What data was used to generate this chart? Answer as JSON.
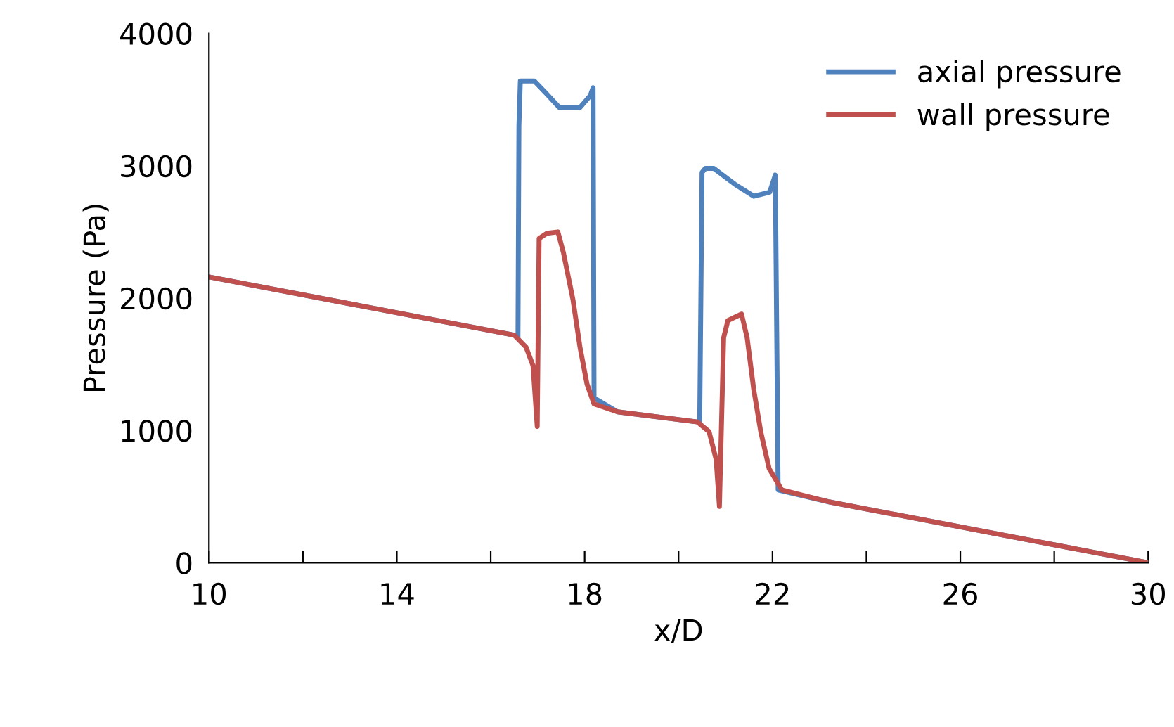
{
  "chart_data": {
    "type": "line",
    "xlabel": "x/D",
    "ylabel": "Pressure (Pa)",
    "xlim": [
      10,
      30
    ],
    "ylim": [
      0,
      4000
    ],
    "xticks": [
      10,
      {
        "value": 12,
        "label": null
      },
      14,
      {
        "value": 16,
        "label": null
      },
      18,
      {
        "value": 20,
        "label": null
      },
      22,
      {
        "value": 24,
        "label": null
      },
      26,
      {
        "value": 28,
        "label": null
      },
      30
    ],
    "yticks": [
      0,
      1000,
      2000,
      3000,
      4000
    ],
    "grid": false,
    "legend": "top right",
    "marker": "none",
    "line_style": "solid",
    "series": [
      {
        "name": "axial pressure",
        "color": "#4f81bd",
        "x": [
          10,
          16.5,
          16.58,
          16.6,
          16.63,
          16.93,
          17.2,
          17.46,
          17.9,
          18.12,
          18.18,
          18.2,
          18.7,
          20.4,
          20.45,
          20.5,
          20.57,
          20.75,
          21.2,
          21.6,
          21.94,
          22.06,
          22.12,
          23.2,
          30
        ],
        "values": [
          2160,
          1720,
          1700,
          3300,
          3640,
          3640,
          3540,
          3440,
          3440,
          3530,
          3590,
          1245,
          1140,
          1064,
          1060,
          2950,
          2980,
          2980,
          2860,
          2770,
          2800,
          2930,
          550,
          460,
          0
        ]
      },
      {
        "name": "wall pressure",
        "color": "#c0504d",
        "x": [
          10,
          16.5,
          16.75,
          16.9,
          16.99,
          17.03,
          17.2,
          17.43,
          17.55,
          17.75,
          17.9,
          18.05,
          18.2,
          18.7,
          20.4,
          20.65,
          20.8,
          20.87,
          20.96,
          21.05,
          21.34,
          21.46,
          21.6,
          21.75,
          21.93,
          22.2,
          23.2,
          30
        ],
        "values": [
          2160,
          1720,
          1630,
          1490,
          1030,
          2450,
          2490,
          2500,
          2340,
          1990,
          1630,
          1350,
          1200,
          1140,
          1064,
          990,
          780,
          425,
          1700,
          1830,
          1880,
          1700,
          1310,
          990,
          710,
          550,
          460,
          0
        ]
      }
    ]
  }
}
